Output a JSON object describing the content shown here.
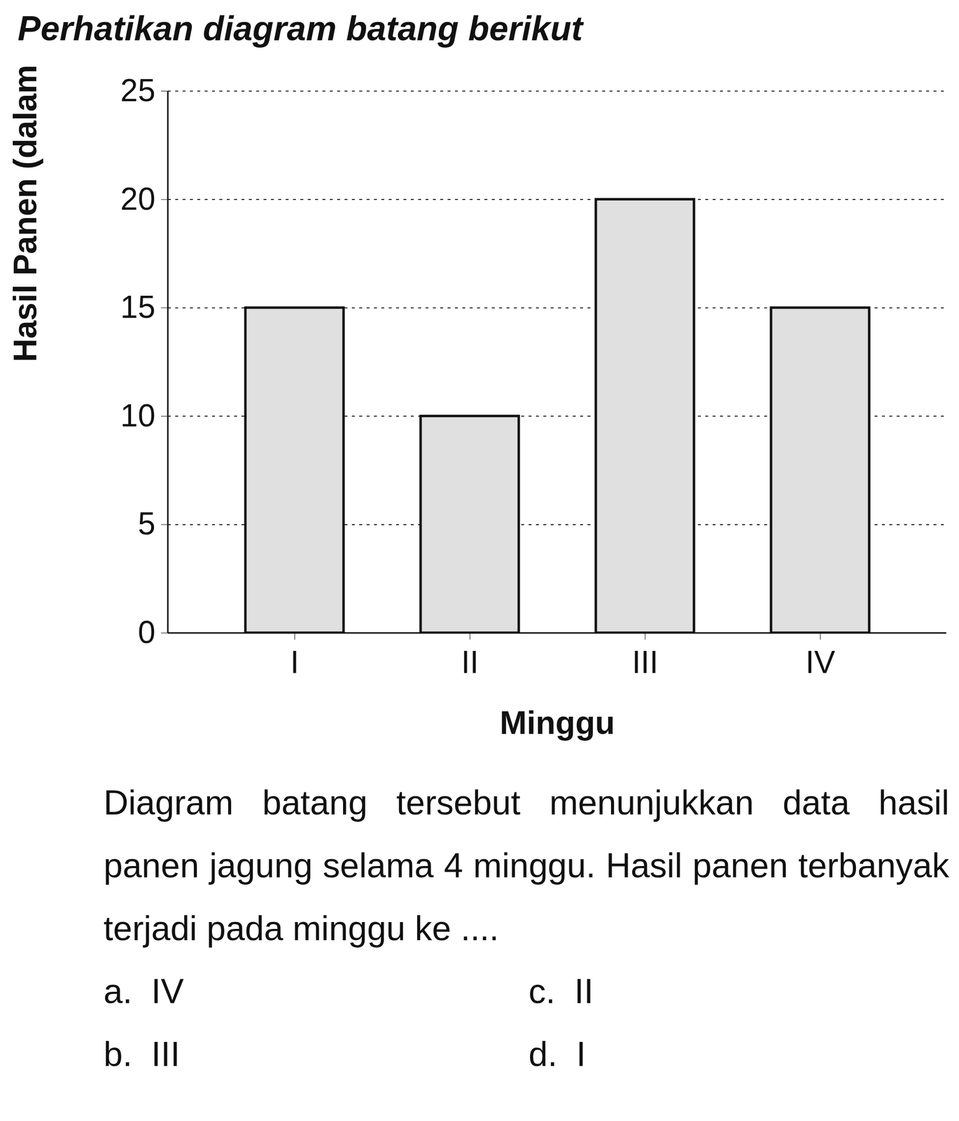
{
  "chart_data": {
    "type": "bar",
    "title": "Perhatikan diagram batang berikut",
    "x_label": "Minggu",
    "y_label": "Hasil Panen (dalam kw)",
    "categories": [
      "I",
      "II",
      "III",
      "IV"
    ],
    "values": [
      15,
      10,
      20,
      15
    ],
    "color": "#e0e0e0",
    "ylim": [
      0,
      25
    ],
    "yticks": [
      0,
      5,
      10,
      15,
      20,
      25
    ],
    "grid": true,
    "annotations": {
      "question": "Diagram batang tersebut menunjukkan data hasil panen jagung selama 4 minggu. Hasil panen terbanyak terjadi pada minggu ke ....",
      "choices": [
        "a.  IV",
        "b.  III",
        "c.  II",
        "d.  I"
      ]
    }
  }
}
